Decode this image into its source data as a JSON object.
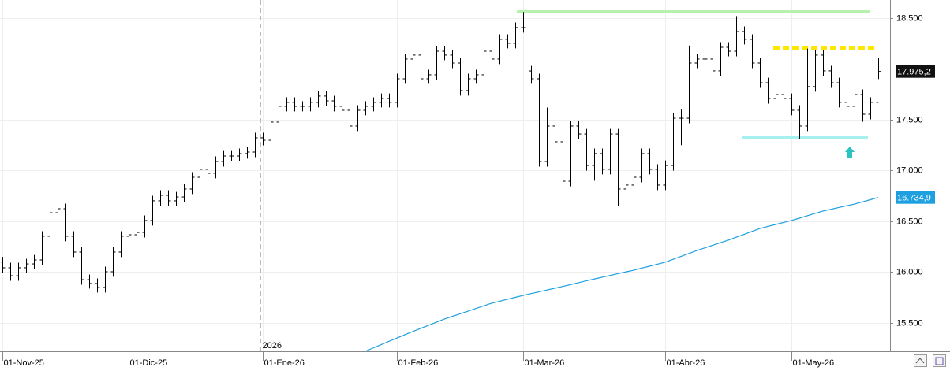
{
  "chart_data": {
    "type": "ohlc",
    "categories": [
      "01-Nov-25",
      null,
      null,
      null,
      null,
      null,
      null,
      null,
      null,
      null,
      null,
      null,
      null,
      null,
      null,
      null,
      "01-Dic-25",
      null,
      null,
      null,
      null,
      null,
      null,
      null,
      null,
      null,
      null,
      null,
      null,
      null,
      null,
      null,
      null,
      "01-Ene-26",
      null,
      null,
      null,
      null,
      null,
      null,
      null,
      null,
      null,
      null,
      null,
      null,
      null,
      null,
      null,
      null,
      "01-Feb-26",
      null,
      null,
      null,
      null,
      null,
      null,
      null,
      null,
      null,
      null,
      null,
      null,
      null,
      null,
      null,
      "01-Mar-26",
      null,
      null,
      null,
      null,
      null,
      null,
      null,
      null,
      null,
      null,
      null,
      null,
      null,
      null,
      null,
      null,
      null,
      "01-Abr-26",
      null,
      null,
      null,
      null,
      null,
      null,
      null,
      null,
      null,
      null,
      null,
      null,
      null,
      null,
      null,
      "01-May-26",
      null,
      null,
      null,
      null,
      null,
      null,
      null,
      null,
      null,
      null,
      null
    ],
    "ohlc": {
      "color": "#000000",
      "open": [
        16100,
        16043,
        15965,
        16043,
        16081,
        16120,
        16353,
        16585,
        16624,
        16353,
        16198,
        15926,
        15888,
        15849,
        16004,
        16198,
        16353,
        16368,
        16391,
        16508,
        16702,
        16756,
        16702,
        16740,
        16818,
        16934,
        17012,
        16973,
        17089,
        17143,
        17143,
        17167,
        17182,
        17322,
        17298,
        17477,
        17632,
        17671,
        17632,
        17632,
        17671,
        17733,
        17686,
        17632,
        17593,
        17438,
        17593,
        17632,
        17671,
        17709,
        17671,
        17903,
        18097,
        18136,
        17903,
        17942,
        18174,
        18136,
        18058,
        17787,
        17903,
        17942,
        18174,
        18097,
        18291,
        18252,
        18407,
        17980,
        17903,
        17089,
        17438,
        17283,
        16895,
        17438,
        17360,
        17050,
        17167,
        17012,
        17360,
        16818,
        16857,
        16934,
        17167,
        17012,
        16857,
        17050,
        17515,
        17515,
        18058,
        18097,
        18097,
        17981,
        18213,
        18174,
        18368,
        18291,
        18058,
        17864,
        17709,
        17748,
        17709,
        17593,
        17438,
        17826,
        18136,
        17981,
        17864,
        17671,
        17632,
        17748,
        17554,
        17671
      ],
      "high": [
        16150,
        16093,
        16093,
        16131,
        16170,
        16403,
        16635,
        16674,
        16674,
        16403,
        16248,
        15976,
        15938,
        16054,
        16248,
        16403,
        16418,
        16441,
        16558,
        16752,
        16806,
        16806,
        16790,
        16868,
        16984,
        17062,
        17062,
        17139,
        17193,
        17193,
        17217,
        17232,
        17372,
        17372,
        17527,
        17682,
        17721,
        17721,
        17682,
        17721,
        17783,
        17783,
        17736,
        17682,
        17643,
        17643,
        17682,
        17721,
        17759,
        17759,
        17953,
        18147,
        18186,
        18186,
        17992,
        18224,
        18224,
        18186,
        18108,
        17953,
        17992,
        18224,
        18224,
        18341,
        18341,
        18457,
        18560,
        18030,
        17953,
        17620,
        17488,
        17333,
        17488,
        17488,
        17410,
        17217,
        17217,
        17410,
        17410,
        16907,
        16984,
        17217,
        17217,
        17062,
        17100,
        17565,
        17600,
        18230,
        18147,
        18147,
        18147,
        18263,
        18263,
        18520,
        18418,
        18341,
        18108,
        17914,
        17798,
        17798,
        17759,
        17643,
        18200,
        18186,
        18186,
        18031,
        17914,
        17721,
        17798,
        17798,
        17721,
        18110
      ],
      "low": [
        15993,
        15915,
        15915,
        15993,
        16031,
        16070,
        16303,
        16535,
        16303,
        16148,
        15876,
        15838,
        15799,
        15799,
        15954,
        16148,
        16303,
        16318,
        16341,
        16458,
        16652,
        16652,
        16652,
        16690,
        16768,
        16884,
        16923,
        16923,
        17039,
        17093,
        17093,
        17117,
        17132,
        17248,
        17248,
        17427,
        17582,
        17582,
        17582,
        17582,
        17621,
        17636,
        17582,
        17543,
        17388,
        17388,
        17543,
        17582,
        17621,
        17621,
        17621,
        17853,
        18047,
        17853,
        17853,
        17892,
        18086,
        18008,
        17737,
        17737,
        17853,
        17892,
        18047,
        18047,
        18202,
        18202,
        18357,
        17853,
        17039,
        17039,
        17233,
        16845,
        16845,
        17310,
        17000,
        16900,
        16962,
        16962,
        16650,
        16250,
        16807,
        16884,
        16962,
        16807,
        16807,
        17000,
        17250,
        17465,
        18008,
        18047,
        17931,
        17931,
        18124,
        18124,
        18241,
        18008,
        17814,
        17659,
        17659,
        17659,
        17543,
        17310,
        17388,
        17776,
        17931,
        17814,
        17621,
        17500,
        17582,
        17480,
        17504,
        17900
      ],
      "close": [
        16043,
        15965,
        16043,
        16081,
        16120,
        16353,
        16585,
        16624,
        16353,
        16198,
        15926,
        15888,
        15849,
        16004,
        16198,
        16353,
        16368,
        16391,
        16508,
        16702,
        16756,
        16702,
        16740,
        16818,
        16934,
        17012,
        16973,
        17089,
        17143,
        17143,
        17167,
        17182,
        17322,
        17298,
        17477,
        17632,
        17671,
        17632,
        17632,
        17671,
        17733,
        17686,
        17632,
        17593,
        17438,
        17593,
        17632,
        17671,
        17709,
        17671,
        17903,
        18097,
        18136,
        17903,
        17942,
        18174,
        18136,
        18058,
        17787,
        17903,
        17942,
        18174,
        18097,
        18291,
        18252,
        18407,
        18407,
        17903,
        17089,
        17438,
        17283,
        16895,
        17438,
        17360,
        17050,
        17167,
        17012,
        17360,
        16818,
        16857,
        16934,
        17167,
        17012,
        16857,
        17050,
        17515,
        17515,
        18058,
        18097,
        18097,
        17981,
        18213,
        18174,
        18368,
        18291,
        18058,
        17864,
        17709,
        17748,
        17709,
        17593,
        17438,
        17826,
        18136,
        17981,
        17864,
        17671,
        17632,
        17748,
        17554,
        17671,
        17975.2
      ]
    },
    "ma": {
      "color": "#1e9fe0",
      "values": [
        null,
        null,
        null,
        null,
        null,
        null,
        null,
        null,
        null,
        null,
        null,
        null,
        null,
        null,
        null,
        null,
        null,
        null,
        null,
        null,
        null,
        null,
        null,
        null,
        null,
        null,
        null,
        null,
        null,
        null,
        null,
        null,
        null,
        null,
        null,
        null,
        null,
        null,
        null,
        null,
        null,
        null,
        null,
        null,
        null,
        null,
        15221,
        15254,
        15286,
        15319,
        15351,
        15384,
        15415,
        15446,
        15476,
        15507,
        15538,
        15564,
        15590,
        15616,
        15642,
        15668,
        15694,
        15713,
        15733,
        15752,
        15771,
        15789,
        15806,
        15824,
        15841,
        15859,
        15877,
        15896,
        15914,
        15932,
        15950,
        15967,
        15985,
        16002,
        16019,
        16039,
        16058,
        16078,
        16097,
        16126,
        16155,
        16184,
        16213,
        16238,
        16264,
        16289,
        16314,
        16343,
        16372,
        16401,
        16430,
        16450,
        16469,
        16489,
        16508,
        16531,
        16555,
        16578,
        16601,
        16618,
        16636,
        16653,
        16670,
        16691,
        16713,
        16734.9
      ]
    },
    "levels": [
      {
        "value": 18562,
        "color": "#b8f0b0",
        "style": "solid"
      },
      {
        "value": 18205,
        "color": "#ffe600",
        "style": "dashed"
      },
      {
        "value": 17322,
        "color": "#a6f0f0",
        "style": "solid"
      }
    ],
    "ylim": [
      15221,
      18678
    ],
    "yticks": [
      {
        "value": 15500,
        "label": "15.500"
      },
      {
        "value": 16000,
        "label": "16.000"
      },
      {
        "value": 16500,
        "label": "16.500"
      },
      {
        "value": 17000,
        "label": "17.000"
      },
      {
        "value": 17500,
        "label": "17.500"
      },
      {
        "value": 18000,
        "label": "18.000"
      },
      {
        "value": 18500,
        "label": "18.500"
      }
    ],
    "last_label": {
      "value": 17975.2,
      "label": "17.975,2"
    },
    "ma_label": {
      "value": 16734.9,
      "label": "16.734,9"
    },
    "year_label": "2026",
    "grid": true
  }
}
